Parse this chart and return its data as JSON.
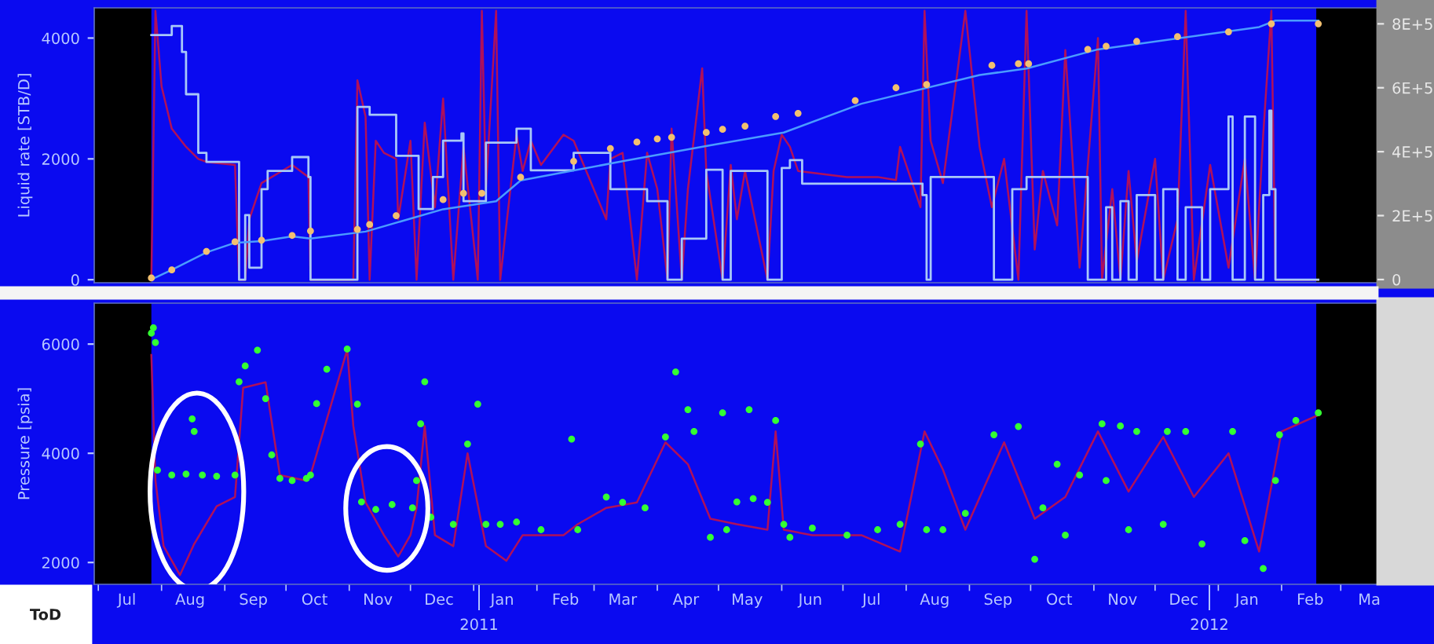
{
  "chart_data": [
    {
      "type": "step",
      "ylabel": "Liquid rate [STB/D]",
      "ylim": [
        -50,
        4500
      ],
      "yticks": [
        0,
        2000,
        4000
      ],
      "y2lim": [
        -10000,
        850000
      ],
      "y2ticks": [
        {
          "value": 0,
          "label": "0"
        },
        {
          "value": 200000,
          "label": "2E+5"
        },
        {
          "value": 400000,
          "label": "4E+5"
        },
        {
          "value": 600000,
          "label": "6E+5"
        },
        {
          "value": 800000,
          "label": "8E+5"
        }
      ],
      "xlim": [
        "2010-06-29",
        "2012-03-19"
      ],
      "tick_labels": "y",
      "grid": false,
      "bands": [
        {
          "axis": "x",
          "from": "2010-06-29",
          "to": "2010-07-27",
          "color": "#000000"
        },
        {
          "axis": "x",
          "from": "2012-02-18",
          "to": "2012-03-19",
          "color": "#000000"
        }
      ],
      "series": [
        {
          "color": "#a8c8f8",
          "x": [
            "2010-07-27",
            "2010-08-06",
            "2010-08-11",
            "2010-08-13",
            "2010-08-19",
            "2010-08-23",
            "2010-09-08",
            "2010-09-11",
            "2010-09-13",
            "2010-09-19",
            "2010-09-22",
            "2010-10-04",
            "2010-10-12",
            "2010-10-13",
            "2010-11-05",
            "2010-11-11",
            "2010-11-24",
            "2010-12-05",
            "2010-12-12",
            "2010-12-17",
            "2010-12-26",
            "2010-12-27",
            "2011-01-07",
            "2011-01-22",
            "2011-01-29",
            "2011-02-19",
            "2011-03-09",
            "2011-03-27",
            "2011-04-06",
            "2011-04-13",
            "2011-04-25",
            "2011-05-03",
            "2011-05-07",
            "2011-05-25",
            "2011-06-01",
            "2011-06-05",
            "2011-06-11",
            "2011-08-09",
            "2011-08-11",
            "2011-08-13",
            "2011-09-13",
            "2011-09-22",
            "2011-09-29",
            "2011-10-29",
            "2011-11-07",
            "2011-11-10",
            "2011-11-14",
            "2011-11-18",
            "2011-11-22",
            "2011-12-01",
            "2011-12-05",
            "2011-12-12",
            "2011-12-16",
            "2011-12-24",
            "2011-12-28",
            "2012-01-06",
            "2012-01-08",
            "2012-01-14",
            "2012-01-19",
            "2012-01-23",
            "2012-01-26",
            "2012-01-27",
            "2012-01-29",
            "2012-02-19"
          ],
          "values": [
            4050,
            4200,
            3770,
            3070,
            2100,
            1950,
            0,
            1070,
            200,
            1500,
            1800,
            2030,
            1700,
            0,
            2860,
            2730,
            2050,
            1170,
            1700,
            2300,
            2420,
            1300,
            2270,
            2500,
            1810,
            2100,
            1500,
            1300,
            0,
            680,
            1820,
            0,
            1800,
            0,
            1850,
            1980,
            1590,
            1400,
            0,
            1700,
            0,
            1500,
            1700,
            0,
            1200,
            0,
            1300,
            0,
            1400,
            0,
            1500,
            0,
            1200,
            0,
            1500,
            2700,
            0,
            2700,
            0,
            1400,
            2800,
            1500,
            0,
            0
          ]
        },
        {
          "type": "line",
          "color": "#b0105a",
          "x": [
            "2010-07-27",
            "2010-07-29",
            "2010-08-01",
            "2010-08-06",
            "2010-08-13",
            "2010-08-19",
            "2010-08-23",
            "2010-09-06",
            "2010-09-08",
            "2010-09-11",
            "2010-09-13",
            "2010-09-19",
            "2010-10-04",
            "2010-10-12",
            "2010-10-13",
            "2010-11-03",
            "2010-11-05",
            "2010-11-09",
            "2010-11-11",
            "2010-11-14",
            "2010-11-18",
            "2010-11-24",
            "2010-11-25",
            "2010-12-01",
            "2010-12-04",
            "2010-12-08",
            "2010-12-13",
            "2010-12-17",
            "2010-12-22",
            "2010-12-27",
            "2011-01-03",
            "2011-01-05",
            "2011-01-07",
            "2011-01-12",
            "2011-01-14",
            "2011-01-22",
            "2011-01-25",
            "2011-01-29",
            "2011-02-03",
            "2011-02-14",
            "2011-02-19",
            "2011-03-07",
            "2011-03-09",
            "2011-03-15",
            "2011-03-22",
            "2011-03-27",
            "2011-04-01",
            "2011-04-06",
            "2011-04-08",
            "2011-04-13",
            "2011-04-16",
            "2011-04-23",
            "2011-04-25",
            "2011-05-03",
            "2011-05-07",
            "2011-05-10",
            "2011-05-14",
            "2011-05-25",
            "2011-05-28",
            "2011-06-01",
            "2011-06-05",
            "2011-06-09",
            "2011-07-03",
            "2011-07-18",
            "2011-07-27",
            "2011-07-29",
            "2011-08-08",
            "2011-08-10",
            "2011-08-13",
            "2011-08-19",
            "2011-08-30",
            "2011-09-06",
            "2011-09-12",
            "2011-09-18",
            "2011-09-25",
            "2011-09-29",
            "2011-10-03",
            "2011-10-07",
            "2011-10-14",
            "2011-10-18",
            "2011-10-25",
            "2011-11-03",
            "2011-11-05",
            "2011-11-10",
            "2011-11-14",
            "2011-11-18",
            "2011-11-22",
            "2011-12-01",
            "2011-12-05",
            "2011-12-12",
            "2011-12-16",
            "2011-12-20",
            "2011-12-28",
            "2012-01-06",
            "2012-01-14",
            "2012-01-19",
            "2012-01-23",
            "2012-01-27",
            "2012-01-29",
            "2012-02-19"
          ],
          "values": [
            0,
            4450,
            3200,
            2500,
            2200,
            2000,
            1950,
            1900,
            0,
            0,
            1000,
            1600,
            1900,
            1700,
            0,
            0,
            3300,
            2700,
            0,
            2300,
            2100,
            2000,
            1000,
            2300,
            0,
            2600,
            1200,
            3000,
            0,
            2200,
            0,
            4450,
            1500,
            4450,
            0,
            2400,
            1800,
            2300,
            1900,
            2400,
            2300,
            1000,
            2000,
            2100,
            0,
            2100,
            1500,
            0,
            2500,
            0,
            1500,
            3500,
            1800,
            0,
            1900,
            1000,
            1800,
            0,
            1800,
            2400,
            2200,
            1800,
            1700,
            1700,
            1650,
            2200,
            1200,
            4450,
            2300,
            1600,
            4450,
            2200,
            1200,
            2000,
            0,
            4450,
            500,
            1800,
            900,
            3800,
            200,
            4000,
            0,
            1500,
            0,
            1800,
            300,
            2000,
            0,
            1000,
            4450,
            0,
            1900,
            200,
            2000,
            0,
            2400,
            4450,
            0,
            0
          ]
        },
        {
          "type": "line",
          "axis": "y2",
          "color": "#4a9cff",
          "x": [
            "2010-07-27",
            "2010-08-06",
            "2010-08-23",
            "2010-09-06",
            "2010-09-19",
            "2010-10-04",
            "2010-10-13",
            "2010-11-09",
            "2010-12-17",
            "2011-01-12",
            "2011-01-24",
            "2011-03-15",
            "2011-04-27",
            "2011-06-02",
            "2011-07-10",
            "2011-09-06",
            "2011-09-29",
            "2011-11-03",
            "2012-01-21",
            "2012-01-29",
            "2012-02-19"
          ],
          "values": [
            0,
            30000,
            85000,
            115000,
            120000,
            135000,
            128000,
            150000,
            220000,
            245000,
            310000,
            370000,
            420000,
            460000,
            550000,
            640000,
            660000,
            720000,
            790000,
            810000,
            810000
          ]
        },
        {
          "type": "scatter",
          "axis": "y2",
          "color": "#f2c070",
          "x": [
            "2010-07-27",
            "2010-08-06",
            "2010-08-23",
            "2010-09-06",
            "2010-09-19",
            "2010-10-04",
            "2010-10-13",
            "2010-11-05",
            "2010-11-11",
            "2010-11-24",
            "2010-12-17",
            "2010-12-27",
            "2011-01-05",
            "2011-01-24",
            "2011-02-19",
            "2011-03-09",
            "2011-03-22",
            "2011-04-01",
            "2011-04-08",
            "2011-04-25",
            "2011-05-03",
            "2011-05-14",
            "2011-05-29",
            "2011-06-09",
            "2011-07-07",
            "2011-07-27",
            "2011-08-11",
            "2011-09-12",
            "2011-09-25",
            "2011-09-30",
            "2011-10-29",
            "2011-11-07",
            "2011-11-22",
            "2011-12-12",
            "2012-01-06",
            "2012-01-27",
            "2012-02-19"
          ],
          "values": [
            5000,
            30000,
            88000,
            118000,
            123000,
            138000,
            152000,
            157000,
            172000,
            200000,
            250000,
            270000,
            270000,
            320000,
            370000,
            410000,
            430000,
            440000,
            445000,
            460000,
            470000,
            480000,
            510000,
            520000,
            560000,
            600000,
            610000,
            670000,
            675000,
            675000,
            720000,
            730000,
            745000,
            760000,
            775000,
            800000,
            800000
          ]
        }
      ]
    },
    {
      "type": "scatter",
      "ylabel": "Pressure [psia]",
      "ylim": [
        1600,
        6750
      ],
      "yticks": [
        2000,
        4000,
        6000
      ],
      "xlim": [
        "2010-06-29",
        "2012-03-19"
      ],
      "grid": false,
      "xticks": [
        {
          "value": "2010-07-15",
          "label": "Jul"
        },
        {
          "value": "2010-08-15",
          "label": "Aug"
        },
        {
          "value": "2010-09-15",
          "label": "Sep"
        },
        {
          "value": "2010-10-15",
          "label": "Oct"
        },
        {
          "value": "2010-11-15",
          "label": "Nov"
        },
        {
          "value": "2010-12-15",
          "label": "Dec"
        },
        {
          "value": "2011-01-15",
          "label": "Jan"
        },
        {
          "value": "2011-02-15",
          "label": "Feb"
        },
        {
          "value": "2011-03-15",
          "label": "Mar"
        },
        {
          "value": "2011-04-15",
          "label": "Apr"
        },
        {
          "value": "2011-05-15",
          "label": "May"
        },
        {
          "value": "2011-06-15",
          "label": "Jun"
        },
        {
          "value": "2011-07-15",
          "label": "Jul"
        },
        {
          "value": "2011-08-15",
          "label": "Aug"
        },
        {
          "value": "2011-09-15",
          "label": "Sep"
        },
        {
          "value": "2011-10-15",
          "label": "Oct"
        },
        {
          "value": "2011-11-15",
          "label": "Nov"
        },
        {
          "value": "2011-12-15",
          "label": "Dec"
        },
        {
          "value": "2012-01-15",
          "label": "Jan"
        },
        {
          "value": "2012-02-15",
          "label": "Feb"
        },
        {
          "value": "2012-03-15",
          "label": "Ma"
        }
      ],
      "annotations": [
        "ToD",
        "2011",
        "2012"
      ],
      "bands": [
        {
          "axis": "x",
          "from": "2010-06-29",
          "to": "2010-07-27",
          "color": "#000000"
        },
        {
          "axis": "x",
          "from": "2012-02-18",
          "to": "2012-03-19",
          "color": "#000000"
        }
      ],
      "series": [
        {
          "color": "#33ff33",
          "x": [
            "2010-07-27",
            "2010-07-28",
            "2010-07-29",
            "2010-07-30",
            "2010-08-06",
            "2010-08-13",
            "2010-08-16",
            "2010-08-17",
            "2010-08-21",
            "2010-08-28",
            "2010-09-06",
            "2010-09-08",
            "2010-09-11",
            "2010-09-17",
            "2010-09-21",
            "2010-09-24",
            "2010-09-28",
            "2010-10-04",
            "2010-10-11",
            "2010-10-13",
            "2010-10-16",
            "2010-10-21",
            "2010-10-31",
            "2010-11-05",
            "2010-11-07",
            "2010-11-14",
            "2010-11-22",
            "2010-12-02",
            "2010-12-04",
            "2010-12-06",
            "2010-12-08",
            "2010-12-11",
            "2010-12-22",
            "2010-12-29",
            "2011-01-03",
            "2011-01-07",
            "2011-01-14",
            "2011-01-22",
            "2011-02-03",
            "2011-02-18",
            "2011-02-21",
            "2011-03-07",
            "2011-03-15",
            "2011-03-26",
            "2011-04-05",
            "2011-04-10",
            "2011-04-16",
            "2011-04-19",
            "2011-04-27",
            "2011-05-03",
            "2011-05-05",
            "2011-05-10",
            "2011-05-16",
            "2011-05-18",
            "2011-05-25",
            "2011-05-29",
            "2011-06-02",
            "2011-06-05",
            "2011-06-16",
            "2011-07-03",
            "2011-07-18",
            "2011-07-29",
            "2011-08-08",
            "2011-08-11",
            "2011-08-19",
            "2011-08-30",
            "2011-09-13",
            "2011-09-25",
            "2011-10-03",
            "2011-10-07",
            "2011-10-14",
            "2011-10-18",
            "2011-10-25",
            "2011-11-05",
            "2011-11-07",
            "2011-11-14",
            "2011-11-18",
            "2011-11-22",
            "2011-12-07",
            "2011-12-05",
            "2011-12-16",
            "2011-12-24",
            "2012-01-08",
            "2012-01-14",
            "2012-01-23",
            "2012-01-29",
            "2012-01-31",
            "2012-02-08",
            "2012-02-19"
          ],
          "values": [
            6200,
            6300,
            6030,
            3690,
            3600,
            3620,
            4630,
            4400,
            3600,
            3580,
            3600,
            5310,
            5600,
            5890,
            5000,
            3970,
            3540,
            3500,
            3540,
            3600,
            4910,
            5540,
            5910,
            4900,
            3110,
            2970,
            3060,
            3000,
            3500,
            4540,
            5310,
            2830,
            2700,
            4170,
            4900,
            2700,
            2700,
            2740,
            2600,
            4260,
            2600,
            3200,
            3100,
            3000,
            4300,
            5490,
            4800,
            4400,
            2460,
            4740,
            2600,
            3110,
            4800,
            3170,
            3100,
            4600,
            2700,
            2460,
            2630,
            2500,
            2600,
            2700,
            4170,
            2600,
            2600,
            2900,
            4340,
            4490,
            2060,
            3000,
            3800,
            2500,
            3600,
            4540,
            3500,
            4500,
            2600,
            4400,
            4400,
            2700,
            4400,
            2340,
            4400,
            2400,
            1890,
            3500,
            4340,
            4600,
            4740
          ]
        },
        {
          "type": "line",
          "color": "#b0105a",
          "x": [
            "2010-07-27",
            "2010-07-29",
            "2010-08-02",
            "2010-08-10",
            "2010-08-17",
            "2010-08-28",
            "2010-09-06",
            "2010-09-10",
            "2010-09-21",
            "2010-09-28",
            "2010-10-11",
            "2010-10-13",
            "2010-10-31",
            "2010-11-03",
            "2010-11-09",
            "2010-11-18",
            "2010-11-25",
            "2010-12-01",
            "2010-12-04",
            "2010-12-08",
            "2010-12-13",
            "2010-12-22",
            "2010-12-29",
            "2011-01-07",
            "2011-01-17",
            "2011-01-25",
            "2011-02-14",
            "2011-02-21",
            "2011-03-07",
            "2011-03-22",
            "2011-04-05",
            "2011-04-16",
            "2011-04-27",
            "2011-05-10",
            "2011-05-25",
            "2011-05-29",
            "2011-06-02",
            "2011-06-16",
            "2011-07-10",
            "2011-07-29",
            "2011-08-10",
            "2011-08-19",
            "2011-08-30",
            "2011-09-18",
            "2011-10-03",
            "2011-10-18",
            "2011-11-03",
            "2011-11-18",
            "2011-12-05",
            "2011-12-20",
            "2012-01-06",
            "2012-01-21",
            "2012-02-01",
            "2012-02-19"
          ],
          "values": [
            5800,
            3500,
            2300,
            1770,
            2340,
            3030,
            3200,
            5200,
            5300,
            3600,
            3500,
            3600,
            5900,
            4500,
            3100,
            2500,
            2110,
            2500,
            3000,
            4500,
            2500,
            2300,
            4000,
            2300,
            2030,
            2500,
            2500,
            2700,
            3000,
            3100,
            4200,
            3800,
            2800,
            2700,
            2600,
            4400,
            2600,
            2500,
            2500,
            2200,
            4400,
            3700,
            2600,
            4200,
            2800,
            3200,
            4400,
            3300,
            4300,
            3200,
            4000,
            2200,
            4400,
            4700
          ]
        }
      ]
    }
  ]
}
